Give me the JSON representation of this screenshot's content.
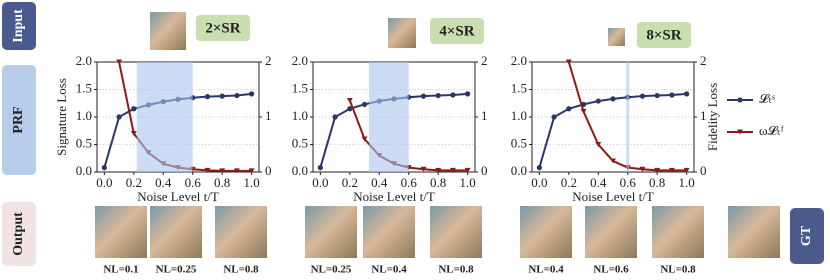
{
  "labels": {
    "input": "Input",
    "prf": "PRF",
    "output": "Output",
    "gt": "GT"
  },
  "chart_data": [
    {
      "type": "line",
      "scale_label": "2×SR",
      "xlabel": "Noise Level t/T",
      "ylabel": "Signature Loss",
      "x": [
        0.0,
        0.1,
        0.2,
        0.3,
        0.4,
        0.5,
        0.6,
        0.7,
        0.8,
        0.9,
        1.0
      ],
      "series": [
        {
          "color": "#2b3566",
          "values": [
            0.08,
            1.0,
            1.15,
            1.22,
            1.28,
            1.32,
            1.35,
            1.37,
            1.38,
            1.39,
            1.42
          ]
        },
        {
          "color": "#8b1a1a",
          "axis": "y2",
          "values": [
            null,
            2.0,
            0.7,
            0.35,
            0.15,
            0.08,
            0.05,
            0.03,
            0.02,
            0.02,
            0.02
          ]
        }
      ],
      "xlim": [
        -0.05,
        1.05
      ],
      "ylim": [
        0,
        2.0
      ],
      "y2lim": [
        0,
        2
      ],
      "xticks": [
        {
          "value": 0,
          "label": "0.0"
        },
        0.2,
        0.4,
        0.6,
        0.8,
        {
          "value": 1,
          "label": "1.0"
        }
      ],
      "yticks": [
        {
          "value": 0,
          "label": "0.0"
        },
        0.5,
        {
          "value": 1,
          "label": "1.0"
        },
        1.5,
        {
          "value": 2,
          "label": "2.0"
        }
      ],
      "y2ticks": [
        0,
        1,
        2
      ],
      "grid": true,
      "highlight": [
        0.22,
        0.6
      ],
      "outputs": [
        "NL=0.1",
        "NL=0.25",
        "NL=0.8"
      ]
    },
    {
      "type": "line",
      "scale_label": "4×SR",
      "xlabel": "Noise Level t/T",
      "x": [
        0.0,
        0.1,
        0.2,
        0.3,
        0.4,
        0.5,
        0.6,
        0.7,
        0.8,
        0.9,
        1.0
      ],
      "series": [
        {
          "color": "#2b3566",
          "values": [
            0.08,
            1.0,
            1.15,
            1.23,
            1.29,
            1.33,
            1.36,
            1.38,
            1.39,
            1.4,
            1.42
          ]
        },
        {
          "color": "#8b1a1a",
          "axis": "y2",
          "values": [
            null,
            null,
            1.3,
            0.6,
            0.3,
            0.15,
            0.08,
            0.05,
            0.03,
            0.03,
            0.03
          ]
        }
      ],
      "xlim": [
        -0.05,
        1.05
      ],
      "ylim": [
        0,
        2.0
      ],
      "y2lim": [
        0,
        2
      ],
      "xticks": [
        {
          "value": 0,
          "label": "0.0"
        },
        0.2,
        0.4,
        0.6,
        0.8,
        {
          "value": 1,
          "label": "1.0"
        }
      ],
      "yticks": [
        {
          "value": 0,
          "label": "0.0"
        },
        0.5,
        {
          "value": 1,
          "label": "1.0"
        },
        1.5,
        {
          "value": 2,
          "label": "2.0"
        }
      ],
      "y2ticks": [
        0,
        1,
        2
      ],
      "grid": true,
      "highlight": [
        0.33,
        0.6
      ],
      "outputs": [
        "NL=0.25",
        "NL=0.4",
        "NL=0.8"
      ]
    },
    {
      "type": "line",
      "scale_label": "8×SR",
      "xlabel": "Noise Level t/T",
      "y2label": "Fidelity Loss",
      "x": [
        0.0,
        0.1,
        0.2,
        0.3,
        0.4,
        0.5,
        0.6,
        0.7,
        0.8,
        0.9,
        1.0
      ],
      "series": [
        {
          "name": "𝓛ₜˢ",
          "color": "#2b3566",
          "values": [
            0.08,
            1.0,
            1.15,
            1.23,
            1.29,
            1.33,
            1.36,
            1.38,
            1.39,
            1.4,
            1.42
          ]
        },
        {
          "name": "ω𝓛ₜᶠ",
          "color": "#8b1a1a",
          "axis": "y2",
          "values": [
            null,
            null,
            2.0,
            1.1,
            0.5,
            0.2,
            0.08,
            0.05,
            0.03,
            0.03,
            0.03
          ]
        }
      ],
      "xlim": [
        -0.05,
        1.05
      ],
      "ylim": [
        0,
        2.0
      ],
      "y2lim": [
        0,
        2
      ],
      "xticks": [
        {
          "value": 0,
          "label": "0.0"
        },
        0.2,
        0.4,
        0.6,
        0.8,
        {
          "value": 1,
          "label": "1.0"
        }
      ],
      "yticks": [
        {
          "value": 0,
          "label": "0.0"
        },
        0.5,
        {
          "value": 1,
          "label": "1.0"
        },
        1.5,
        {
          "value": 2,
          "label": "2.0"
        }
      ],
      "y2ticks": [
        0,
        1,
        2
      ],
      "grid": true,
      "highlight": [
        0.59,
        0.61
      ],
      "legend": "right",
      "outputs": [
        "NL=0.4",
        "NL=0.6",
        "NL=0.8"
      ]
    }
  ]
}
